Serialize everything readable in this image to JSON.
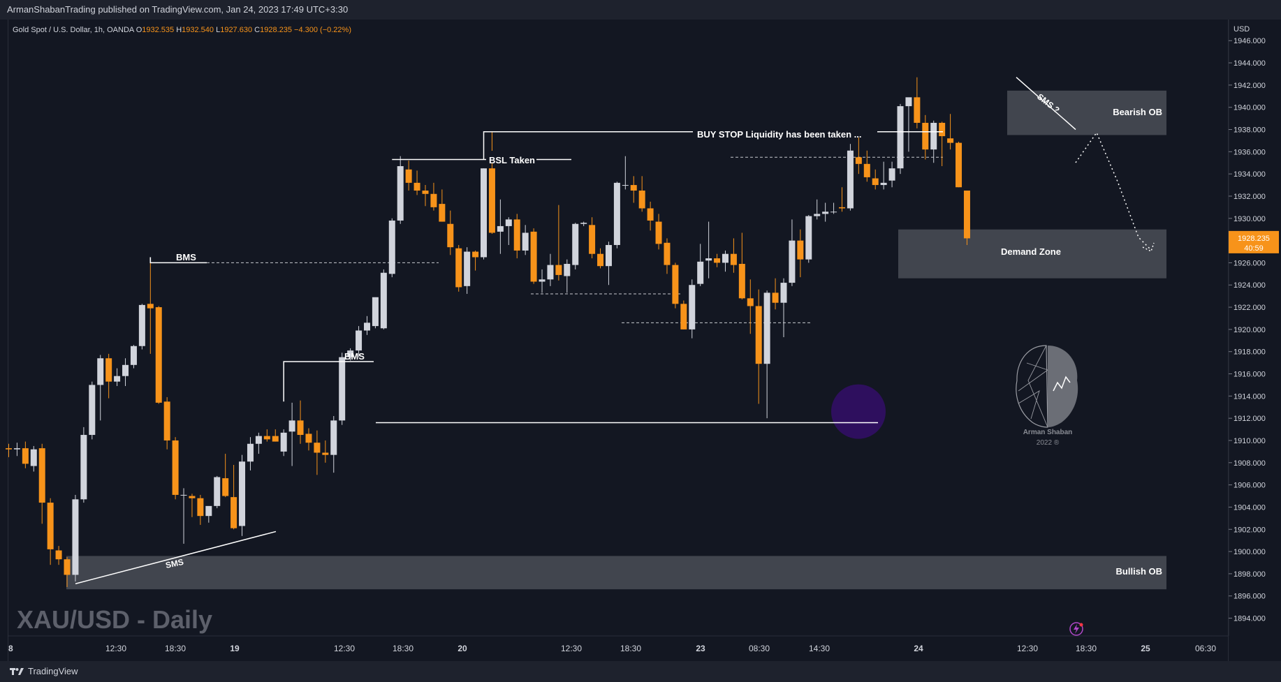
{
  "header": {
    "publisher": "ArmanShabanTrading published on TradingView.com, Jan 24, 2023 17:49 UTC+3:30"
  },
  "legend": {
    "symbol": "Gold Spot / U.S. Dollar, 1h, OANDA",
    "o_label": "O",
    "o_value": "1932.535",
    "h_label": "H",
    "h_value": "1932.540",
    "l_label": "L",
    "l_value": "1927.630",
    "c_label": "C",
    "c_value": "1928.235",
    "change": "−4.300 (−0.22%)"
  },
  "footer": {
    "brand": "TradingView"
  },
  "watermark": {
    "title": "XAU/USD - Daily",
    "logo_line1": "Arman Shaban",
    "logo_line2": "2022 ®"
  },
  "colors": {
    "background": "#131722",
    "bull": "#d1d4dc",
    "bear": "#f7931a",
    "zone": "#4a4d56",
    "accent_circle": "#2e0f5e",
    "last_price": "#f7931a"
  },
  "price_axis": {
    "currency": "USD",
    "ticks": [
      "1894.000",
      "1896.000",
      "1898.000",
      "1900.000",
      "1902.000",
      "1904.000",
      "1906.000",
      "1908.000",
      "1910.000",
      "1912.000",
      "1914.000",
      "1916.000",
      "1918.000",
      "1920.000",
      "1922.000",
      "1924.000",
      "1926.000",
      "1928.000",
      "1930.000",
      "1932.000",
      "1934.000",
      "1936.000",
      "1938.000",
      "1940.000",
      "1942.000",
      "1944.000",
      "1946.000"
    ],
    "last_price": "1928.235",
    "countdown": "40:59"
  },
  "time_axis": {
    "labels": [
      "8",
      "12:30",
      "18:30",
      "19",
      "12:30",
      "18:30",
      "20",
      "12:30",
      "18:30",
      "23",
      "08:30",
      "14:30",
      "24",
      "12:30",
      "18:30",
      "25",
      "06:30"
    ]
  },
  "annotations": {
    "bms_1": "BMS",
    "bms_2": "BMS",
    "sms_1": "SMS",
    "sms_2": "SMS ?",
    "bsl": "BSL Taken",
    "buy_stop": "BUY STOP Liquidity has been taken ...",
    "bearish_ob": "Bearish OB",
    "demand_zone": "Demand Zone",
    "bullish_ob": "Bullish OB"
  },
  "chart_data": {
    "type": "candlestick",
    "title": "XAU/USD - Daily",
    "ylabel": "USD",
    "ylim": [
      1892.4,
      1947.9
    ],
    "grid": false,
    "series": [
      {
        "name": "Gold Spot / U.S. Dollar",
        "ohlc": [
          [
            1909.3,
            1909.7,
            1908.5,
            1909.2
          ],
          [
            1909.2,
            1909.8,
            1908.6,
            1909.3
          ],
          [
            1909.3,
            1909.9,
            1907.5,
            1907.9
          ],
          [
            1907.7,
            1909.5,
            1907.2,
            1909.2
          ],
          [
            1909.3,
            1909.7,
            1902.5,
            1904.4
          ],
          [
            1904.4,
            1904.8,
            1898.8,
            1900.2
          ],
          [
            1900.1,
            1900.5,
            1898.8,
            1899.3
          ],
          [
            1899.3,
            1899.5,
            1896.8,
            1897.9
          ],
          [
            1897.9,
            1905.1,
            1897.3,
            1904.7
          ],
          [
            1904.7,
            1911.2,
            1904.4,
            1910.5
          ],
          [
            1910.5,
            1915.3,
            1910.1,
            1915.0
          ],
          [
            1915.0,
            1917.7,
            1911.8,
            1917.4
          ],
          [
            1917.4,
            1917.8,
            1913.8,
            1915.3
          ],
          [
            1915.3,
            1916.5,
            1914.9,
            1915.8
          ],
          [
            1915.8,
            1917.4,
            1914.9,
            1916.8
          ],
          [
            1916.8,
            1918.6,
            1916.5,
            1918.5
          ],
          [
            1918.5,
            1922.3,
            1918.2,
            1922.2
          ],
          [
            1922.3,
            1926.5,
            1917.8,
            1921.9
          ],
          [
            1922.0,
            1922.1,
            1913.3,
            1913.4
          ],
          [
            1913.5,
            1913.9,
            1909.2,
            1910.0
          ],
          [
            1910.0,
            1910.3,
            1904.7,
            1905.1
          ],
          [
            1905.1,
            1905.7,
            1900.7,
            1905.1
          ],
          [
            1905.0,
            1905.2,
            1903.1,
            1904.8
          ],
          [
            1904.8,
            1905.1,
            1902.4,
            1903.2
          ],
          [
            1903.2,
            1904.0,
            1902.6,
            1904.1
          ],
          [
            1904.1,
            1906.8,
            1903.9,
            1906.7
          ],
          [
            1906.6,
            1908.8,
            1904.9,
            1905.0
          ],
          [
            1904.9,
            1907.8,
            1902.0,
            1902.1
          ],
          [
            1902.3,
            1908.7,
            1901.4,
            1908.1
          ],
          [
            1908.1,
            1910.3,
            1907.3,
            1909.7
          ],
          [
            1909.7,
            1910.7,
            1908.8,
            1910.4
          ],
          [
            1910.4,
            1911.0,
            1909.9,
            1910.1
          ],
          [
            1910.4,
            1911.0,
            1909.9,
            1909.9
          ],
          [
            1909.0,
            1911.0,
            1908.6,
            1910.7
          ],
          [
            1910.8,
            1913.4,
            1907.7,
            1911.8
          ],
          [
            1911.8,
            1913.6,
            1909.7,
            1910.5
          ],
          [
            1910.6,
            1911.1,
            1909.1,
            1909.8
          ],
          [
            1909.8,
            1910.9,
            1906.9,
            1908.9
          ],
          [
            1908.9,
            1910.0,
            1908.0,
            1908.7
          ],
          [
            1908.7,
            1912.2,
            1907.1,
            1911.8
          ],
          [
            1911.8,
            1917.9,
            1911.4,
            1917.5
          ],
          [
            1917.5,
            1918.3,
            1917.2,
            1918.1
          ],
          [
            1918.1,
            1920.3,
            1917.5,
            1919.9
          ],
          [
            1919.9,
            1921.2,
            1919.5,
            1920.6
          ],
          [
            1920.3,
            1922.8,
            1920.1,
            1922.9
          ],
          [
            1920.1,
            1925.4,
            1920.0,
            1925.1
          ],
          [
            1925.0,
            1930.0,
            1924.7,
            1929.8
          ],
          [
            1929.8,
            1935.6,
            1929.5,
            1934.7
          ],
          [
            1934.4,
            1935.2,
            1932.5,
            1933.2
          ],
          [
            1933.2,
            1934.3,
            1932.1,
            1932.5
          ],
          [
            1932.5,
            1933.0,
            1931.1,
            1932.2
          ],
          [
            1932.2,
            1933.2,
            1930.7,
            1931.0
          ],
          [
            1931.3,
            1932.6,
            1929.7,
            1929.7
          ],
          [
            1929.5,
            1930.7,
            1926.7,
            1927.4
          ],
          [
            1927.3,
            1927.6,
            1923.4,
            1923.8
          ],
          [
            1923.9,
            1927.4,
            1923.2,
            1927.0
          ],
          [
            1927.0,
            1927.1,
            1925.3,
            1926.5
          ],
          [
            1926.5,
            1934.5,
            1926.3,
            1934.5
          ],
          [
            1934.5,
            1937.8,
            1928.6,
            1928.7
          ],
          [
            1928.8,
            1931.7,
            1926.8,
            1929.3
          ],
          [
            1929.3,
            1930.1,
            1927.6,
            1929.9
          ],
          [
            1929.9,
            1930.4,
            1926.4,
            1927.1
          ],
          [
            1927.1,
            1929.4,
            1926.7,
            1928.7
          ],
          [
            1928.8,
            1929.1,
            1924.1,
            1924.3
          ],
          [
            1924.3,
            1925.4,
            1923.3,
            1924.5
          ],
          [
            1924.5,
            1926.8,
            1923.9,
            1925.8
          ],
          [
            1925.8,
            1931.2,
            1924.4,
            1924.9
          ],
          [
            1924.8,
            1926.3,
            1923.3,
            1925.9
          ],
          [
            1925.8,
            1929.6,
            1925.4,
            1929.5
          ],
          [
            1929.5,
            1929.7,
            1929.3,
            1929.6
          ],
          [
            1929.4,
            1930.1,
            1926.4,
            1926.8
          ],
          [
            1926.8,
            1927.3,
            1925.5,
            1925.7
          ],
          [
            1925.7,
            1927.9,
            1924.0,
            1927.6
          ],
          [
            1927.6,
            1933.3,
            1927.3,
            1933.2
          ],
          [
            1933.0,
            1935.6,
            1932.6,
            1933.0
          ],
          [
            1933.0,
            1933.8,
            1931.4,
            1932.5
          ],
          [
            1932.5,
            1933.8,
            1930.6,
            1930.9
          ],
          [
            1930.9,
            1931.5,
            1928.9,
            1929.8
          ],
          [
            1929.7,
            1930.4,
            1927.2,
            1927.7
          ],
          [
            1927.8,
            1928.2,
            1925.0,
            1925.8
          ],
          [
            1925.8,
            1926.0,
            1921.9,
            1922.3
          ],
          [
            1922.3,
            1922.6,
            1920.0,
            1920.0
          ],
          [
            1920.0,
            1924.5,
            1919.2,
            1924.0
          ],
          [
            1924.1,
            1927.7,
            1923.9,
            1926.1
          ],
          [
            1926.2,
            1929.7,
            1924.6,
            1926.4
          ],
          [
            1926.4,
            1926.8,
            1925.6,
            1926.0
          ],
          [
            1926.0,
            1927.1,
            1925.2,
            1926.8
          ],
          [
            1926.8,
            1928.2,
            1925.1,
            1925.8
          ],
          [
            1925.9,
            1928.7,
            1922.7,
            1922.8
          ],
          [
            1922.8,
            1924.5,
            1919.6,
            1922.1
          ],
          [
            1922.1,
            1923.6,
            1913.3,
            1916.9
          ],
          [
            1916.9,
            1923.5,
            1912.0,
            1923.3
          ],
          [
            1923.3,
            1924.6,
            1921.8,
            1922.4
          ],
          [
            1922.4,
            1924.6,
            1919.3,
            1924.2
          ],
          [
            1924.2,
            1929.9,
            1923.9,
            1928.0
          ],
          [
            1928.0,
            1929.0,
            1924.7,
            1926.3
          ],
          [
            1926.3,
            1930.3,
            1926.0,
            1930.2
          ],
          [
            1930.2,
            1931.7,
            1929.9,
            1930.4
          ],
          [
            1930.4,
            1931.4,
            1929.7,
            1930.6
          ],
          [
            1930.6,
            1931.4,
            1930.4,
            1930.6
          ],
          [
            1931.0,
            1932.8,
            1930.6,
            1930.9
          ],
          [
            1930.9,
            1936.7,
            1930.7,
            1936.1
          ],
          [
            1935.5,
            1937.3,
            1934.0,
            1934.9
          ],
          [
            1934.9,
            1936.1,
            1933.3,
            1933.7
          ],
          [
            1933.6,
            1934.4,
            1932.6,
            1933.0
          ],
          [
            1933.0,
            1935.1,
            1932.6,
            1933.2
          ],
          [
            1933.4,
            1935.1,
            1932.8,
            1934.5
          ],
          [
            1934.5,
            1940.3,
            1934.0,
            1940.1
          ],
          [
            1940.1,
            1940.8,
            1936.0,
            1940.9
          ],
          [
            1940.9,
            1942.7,
            1938.1,
            1938.6
          ],
          [
            1938.6,
            1939.3,
            1935.3,
            1936.2
          ],
          [
            1936.2,
            1938.8,
            1935.0,
            1938.6
          ],
          [
            1938.6,
            1938.7,
            1934.7,
            1937.4
          ],
          [
            1937.2,
            1939.4,
            1936.2,
            1936.8
          ],
          [
            1936.8,
            1936.9,
            1932.8,
            1932.8
          ],
          [
            1932.5,
            1932.5,
            1927.6,
            1928.2
          ]
        ]
      }
    ]
  }
}
